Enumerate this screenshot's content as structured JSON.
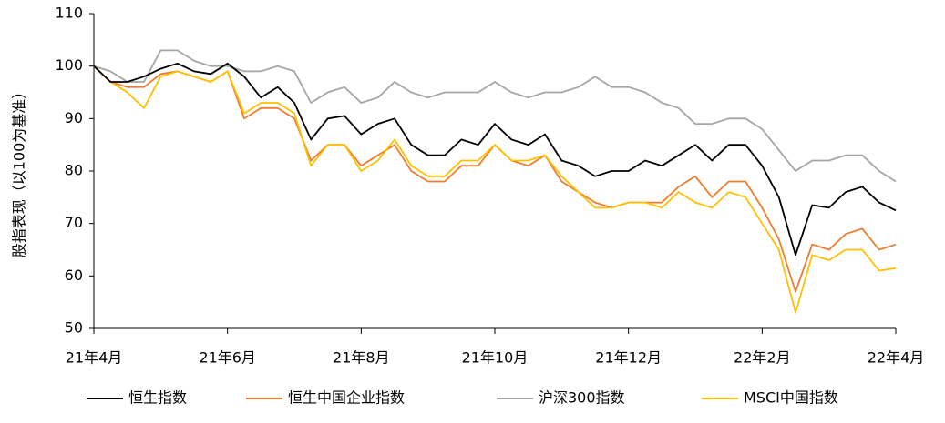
{
  "chart_data": {
    "type": "line",
    "ylabel": "股指表现（以100为基准）",
    "categories": [
      "21年4月",
      null,
      null,
      null,
      null,
      null,
      null,
      null,
      "21年6月",
      null,
      null,
      null,
      null,
      null,
      null,
      null,
      "21年8月",
      null,
      null,
      null,
      null,
      null,
      null,
      null,
      "21年10月",
      null,
      null,
      null,
      null,
      null,
      null,
      null,
      "21年12月",
      null,
      null,
      null,
      null,
      null,
      null,
      null,
      "22年2月",
      null,
      null,
      null,
      null,
      null,
      null,
      null,
      "22年4月"
    ],
    "series": [
      {
        "name": "恒生指数",
        "color": "#000000",
        "values": [
          100,
          97,
          97,
          98,
          99.5,
          100.5,
          99,
          98.5,
          100.5,
          98,
          94,
          96,
          93,
          86,
          90,
          90.5,
          87,
          89,
          90,
          85,
          83,
          83,
          86,
          85,
          89,
          86,
          85,
          87,
          82,
          81,
          79,
          80,
          80,
          82,
          81,
          83,
          85,
          82,
          85,
          85,
          81,
          75,
          64,
          73.5,
          73,
          76,
          77,
          74,
          72.5
        ]
      },
      {
        "name": "恒生中国企业指数",
        "color": "#ed7d31",
        "values": [
          100,
          97,
          96,
          96,
          98.5,
          99,
          98,
          97,
          99,
          90,
          92,
          92,
          90,
          82,
          85,
          85,
          81,
          83,
          85,
          80,
          78,
          78,
          81,
          81,
          85,
          82,
          81,
          83,
          78,
          76,
          74,
          73,
          74,
          74,
          74,
          77,
          79,
          75,
          78,
          78,
          73,
          67,
          57,
          66,
          65,
          68,
          69,
          65,
          66
        ]
      },
      {
        "name": "沪深300指数",
        "color": "#a5a5a5",
        "values": [
          100,
          99,
          97,
          97,
          103,
          103,
          101,
          100,
          100,
          99,
          99,
          100,
          99,
          93,
          95,
          96,
          93,
          94,
          97,
          95,
          94,
          95,
          95,
          95,
          97,
          95,
          94,
          95,
          95,
          96,
          98,
          96,
          96,
          95,
          93,
          92,
          89,
          89,
          90,
          90,
          88,
          84,
          80,
          82,
          82,
          83,
          83,
          80,
          78
        ]
      },
      {
        "name": "MSCI中国指数",
        "color": "#ffc000",
        "values": [
          100,
          97,
          95,
          92,
          98,
          99,
          98,
          97,
          99,
          91,
          93,
          93,
          91,
          81,
          85,
          85,
          80,
          82,
          86,
          81,
          79,
          79,
          82,
          82,
          85,
          82,
          82,
          83,
          79,
          76,
          73,
          73,
          74,
          74,
          73,
          76,
          74,
          73,
          76,
          75,
          70,
          65,
          53,
          64,
          63,
          65,
          65,
          61,
          61.5
        ]
      }
    ],
    "ylim": [
      50,
      110
    ],
    "yticks": [
      50,
      60,
      70,
      80,
      90,
      100,
      110
    ],
    "grid": false
  }
}
